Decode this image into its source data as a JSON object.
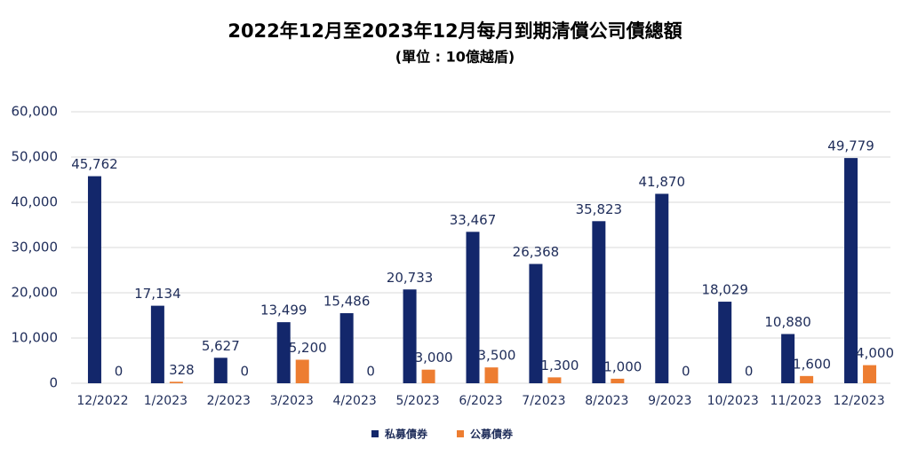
{
  "chart_data": {
    "type": "bar",
    "title": "2022年12月至2023年12月每月到期清償公司債總額",
    "subtitle": "(單位 : 10億越盾)",
    "categories": [
      "12/2022",
      "1/2023",
      "2/2023",
      "3/2023",
      "4/2023",
      "5/2023",
      "6/2023",
      "7/2023",
      "8/2023",
      "9/2023",
      "10/2023",
      "11/2023",
      "12/2023"
    ],
    "series": [
      {
        "name": "私募債券",
        "color": "#13276b",
        "values": [
          45762,
          17134,
          5627,
          13499,
          15486,
          20733,
          33467,
          26368,
          35823,
          41870,
          18029,
          10880,
          49779
        ],
        "value_labels": [
          "45,762",
          "17,134",
          "5,627",
          "13,499",
          "15,486",
          "20,733",
          "33,467",
          "26,368",
          "35,823",
          "41,870",
          "18,029",
          "10,880",
          "49,779"
        ]
      },
      {
        "name": "公募債券",
        "color": "#ed7d31",
        "values": [
          0,
          328,
          0,
          5200,
          0,
          3000,
          3500,
          1300,
          1000,
          0,
          0,
          1600,
          4000
        ],
        "value_labels": [
          "0",
          "328",
          "0",
          "5,200",
          "0",
          "3,000",
          "3,500",
          "1,300",
          "1,000",
          "0",
          "0",
          "1,600",
          "4,000"
        ]
      }
    ],
    "ylim": [
      0,
      60000
    ],
    "yticks": [
      0,
      {
        "value": 10000,
        "label": "10,000"
      },
      {
        "value": 20000,
        "label": "20,000"
      },
      {
        "value": 30000,
        "label": "30,000"
      },
      {
        "value": 40000,
        "label": "40,000"
      },
      {
        "value": 50000,
        "label": "50,000"
      },
      {
        "value": 60000,
        "label": "60,000"
      }
    ],
    "grid": true,
    "legend": "bottom"
  }
}
